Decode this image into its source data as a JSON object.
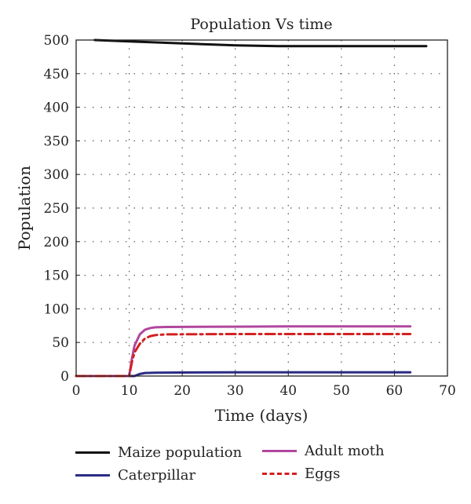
{
  "chart_data": {
    "type": "line",
    "title": "Population Vs time",
    "xlabel": "Time (days)",
    "ylabel": "Population",
    "xlim": [
      0,
      70
    ],
    "ylim": [
      0,
      500
    ],
    "xticks": [
      0,
      10,
      20,
      30,
      40,
      50,
      60,
      70
    ],
    "yticks": [
      0,
      50,
      100,
      150,
      200,
      250,
      300,
      350,
      400,
      450,
      500
    ],
    "grid": "dotted",
    "legend_position": "bottom",
    "series": [
      {
        "name": "Maize population",
        "color": "#111111",
        "style": "solid",
        "points": [
          [
            3.5,
            500
          ],
          [
            10,
            498
          ],
          [
            20,
            495
          ],
          [
            30,
            492
          ],
          [
            38,
            491
          ],
          [
            50,
            491
          ],
          [
            66,
            491
          ]
        ]
      },
      {
        "name": "Caterpillar",
        "color": "#2b2b86",
        "style": "solid",
        "points": [
          [
            0,
            0
          ],
          [
            10.5,
            0
          ],
          [
            11,
            0
          ],
          [
            12,
            3
          ],
          [
            13,
            4.5
          ],
          [
            15,
            5
          ],
          [
            20,
            5.2
          ],
          [
            30,
            5.5
          ],
          [
            40,
            5.5
          ],
          [
            50,
            5.5
          ],
          [
            63,
            5.5
          ]
        ]
      },
      {
        "name": "Adult moth",
        "color": "#b0479e",
        "style": "solid",
        "points": [
          [
            0,
            0
          ],
          [
            10,
            0
          ],
          [
            10.5,
            25
          ],
          [
            11,
            45
          ],
          [
            12,
            62
          ],
          [
            13,
            69
          ],
          [
            14,
            71.5
          ],
          [
            15,
            72.5
          ],
          [
            17,
            73
          ],
          [
            30,
            73.5
          ],
          [
            40,
            74
          ],
          [
            50,
            74
          ],
          [
            63,
            74
          ]
        ]
      },
      {
        "name": "Eggs",
        "color": "#d42020",
        "style": "dashdot",
        "points": [
          [
            0,
            0
          ],
          [
            10,
            0
          ],
          [
            10.5,
            20
          ],
          [
            11,
            35
          ],
          [
            12,
            48
          ],
          [
            13,
            56
          ],
          [
            14,
            59.5
          ],
          [
            15,
            61
          ],
          [
            17,
            62
          ],
          [
            30,
            62.5
          ],
          [
            40,
            62.5
          ],
          [
            50,
            62.5
          ],
          [
            63,
            62.5
          ]
        ]
      }
    ]
  },
  "legend": {
    "items": [
      {
        "label": "Maize population"
      },
      {
        "label": "Caterpillar"
      },
      {
        "label": "Adult moth"
      },
      {
        "label": "Eggs"
      }
    ]
  }
}
